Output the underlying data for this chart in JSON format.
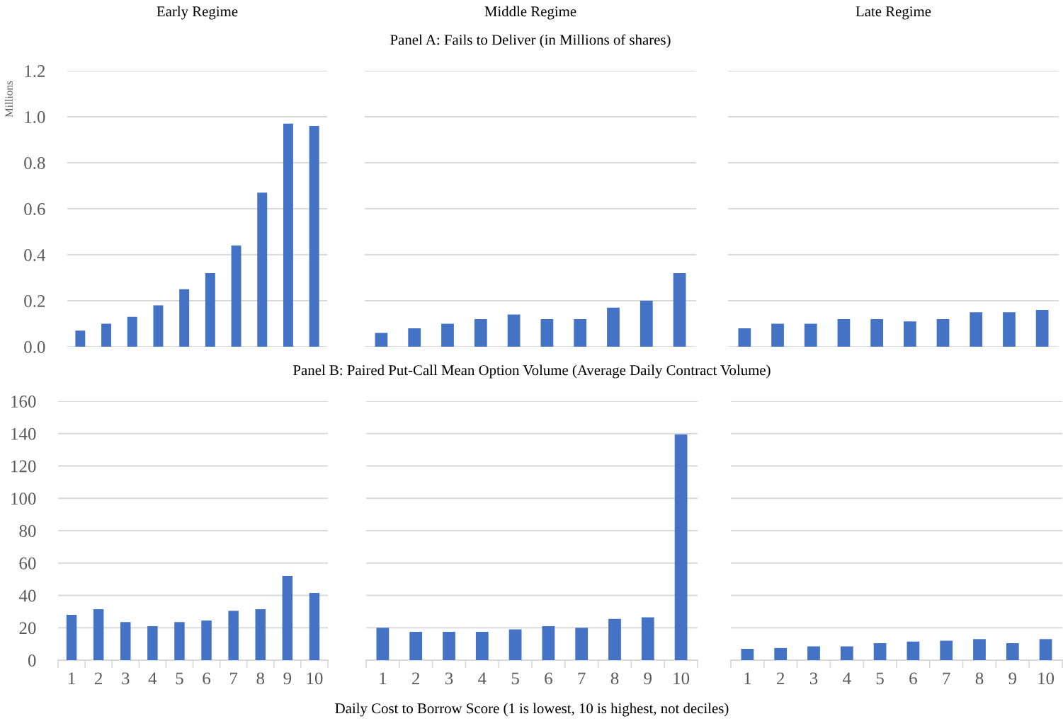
{
  "chart_data": [
    {
      "type": "bar",
      "title": "Early Regime",
      "ylabel": "Millions",
      "categories": [
        "1",
        "2",
        "3",
        "4",
        "5",
        "6",
        "7",
        "8",
        "9",
        "10"
      ],
      "values": [
        0.07,
        0.1,
        0.13,
        0.18,
        0.25,
        0.32,
        0.44,
        0.67,
        0.97,
        0.96
      ],
      "color": "#4472c4",
      "ylim": [
        0,
        1.2
      ],
      "yticks": [
        {
          "value": 0,
          "label": "0.0"
        },
        0.2,
        0.4,
        0.6,
        0.8,
        {
          "value": 1,
          "label": "1.0"
        },
        1.2
      ],
      "grid": "y",
      "tick_labels": "y"
    },
    {
      "type": "bar",
      "title": "Middle Regime",
      "subtitle": "Panel A: Fails to Deliver (in Millions of shares)",
      "categories": [
        "1",
        "2",
        "3",
        "4",
        "5",
        "6",
        "7",
        "8",
        "9",
        "10"
      ],
      "values": [
        0.06,
        0.08,
        0.1,
        0.12,
        0.14,
        0.12,
        0.12,
        0.17,
        0.2,
        0.32
      ],
      "color": "#4472c4",
      "ylim": [
        0,
        1.2
      ],
      "yticks": [
        0,
        0.2,
        0.4,
        0.6,
        0.8,
        1,
        1.2
      ],
      "grid": "y",
      "tick_labels": false
    },
    {
      "type": "bar",
      "title": "Late Regime",
      "categories": [
        "1",
        "2",
        "3",
        "4",
        "5",
        "6",
        "7",
        "8",
        "9",
        "10"
      ],
      "values": [
        0.08,
        0.1,
        0.1,
        0.12,
        0.12,
        0.11,
        0.12,
        0.15,
        0.15,
        0.16
      ],
      "color": "#4472c4",
      "ylim": [
        0,
        1.2
      ],
      "yticks": [
        0,
        0.2,
        0.4,
        0.6,
        0.8,
        1,
        1.2
      ],
      "grid": "y",
      "tick_labels": false
    },
    {
      "type": "bar",
      "categories": [
        "1",
        "2",
        "3",
        "4",
        "5",
        "6",
        "7",
        "8",
        "9",
        "10"
      ],
      "values": [
        28,
        31.5,
        23.5,
        21,
        23.5,
        24.5,
        30.5,
        31.5,
        52,
        41.5
      ],
      "color": "#4472c4",
      "ylim": [
        0,
        160
      ],
      "yticks": [
        0,
        20,
        40,
        60,
        80,
        100,
        120,
        140,
        160
      ],
      "grid": "y"
    },
    {
      "type": "bar",
      "subtitle": "Panel B: Paired Put-Call Mean Option Volume (Average Daily Contract Volume)",
      "xlabel": "Daily Cost to Borrow Score (1 is lowest, 10 is highest, not deciles)",
      "categories": [
        "1",
        "2",
        "3",
        "4",
        "5",
        "6",
        "7",
        "8",
        "9",
        "10"
      ],
      "values": [
        20,
        17.5,
        17.5,
        17.5,
        19,
        21,
        20,
        25.5,
        26.5,
        139.5
      ],
      "color": "#4472c4",
      "ylim": [
        0,
        160
      ],
      "yticks": [
        0,
        20,
        40,
        60,
        80,
        100,
        120,
        140,
        160
      ],
      "grid": "y",
      "tick_labels": "x"
    },
    {
      "type": "bar",
      "categories": [
        "1",
        "2",
        "3",
        "4",
        "5",
        "6",
        "7",
        "8",
        "9",
        "10"
      ],
      "values": [
        7,
        7.5,
        8.5,
        8.5,
        10.5,
        11.5,
        12,
        13,
        10.5,
        13
      ],
      "color": "#4472c4",
      "ylim": [
        0,
        160
      ],
      "yticks": [
        0,
        20,
        40,
        60,
        80,
        100,
        120,
        140,
        160
      ],
      "grid": "y",
      "tick_labels": "x"
    }
  ]
}
